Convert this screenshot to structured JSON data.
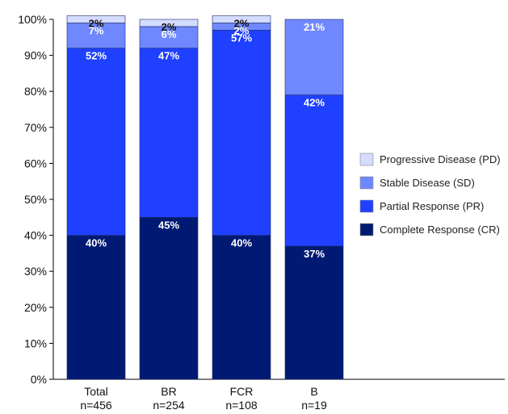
{
  "chart_data": {
    "type": "bar",
    "stacked": true,
    "categories": [
      "Total",
      "BR",
      "FCR",
      "B"
    ],
    "category_sublabels": [
      "n=456",
      "n=254",
      "n=108",
      "n=19"
    ],
    "y_ticks": [
      "0%",
      "10%",
      "20%",
      "30%",
      "40%",
      "50%",
      "60%",
      "70%",
      "80%",
      "90%",
      "100%"
    ],
    "ylim": [
      0,
      100
    ],
    "grid": false,
    "legend_position": "right",
    "series": [
      {
        "name": "Complete Response (CR)",
        "values": [
          40,
          45,
          40,
          37
        ],
        "labels": [
          "40%",
          "45%",
          "40%",
          "37%"
        ],
        "color": "#001a73",
        "label_color": "#ffffff"
      },
      {
        "name": "Partial Response (PR)",
        "values": [
          52,
          47,
          57,
          42
        ],
        "labels": [
          "52%",
          "47%",
          "57%",
          "42%"
        ],
        "color": "#1f40ff",
        "label_color": "#ffffff"
      },
      {
        "name": "Stable Disease (SD)",
        "values": [
          7,
          6,
          2,
          21
        ],
        "labels": [
          "7%",
          "6%",
          "2%",
          "21%"
        ],
        "color": "#7088ff",
        "label_color": "#ffffff"
      },
      {
        "name": "Progressive Disease (PD)",
        "values": [
          2,
          2,
          2,
          0
        ],
        "labels": [
          "2%",
          "2%",
          "2%",
          ""
        ],
        "color": "#d4dcff",
        "label_color": "#111111"
      }
    ]
  }
}
